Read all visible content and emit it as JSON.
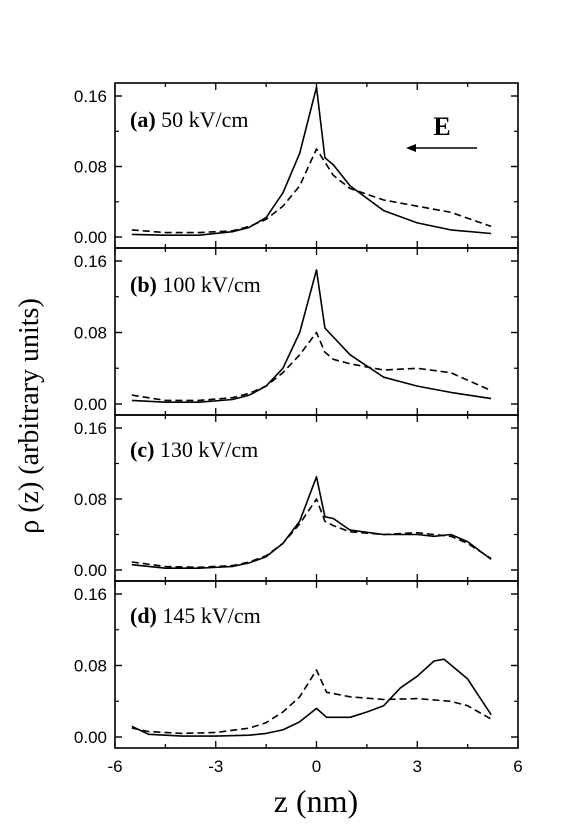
{
  "chart_data": [
    {
      "type": "line",
      "panel_label": "(a)",
      "field_label": "50 kV/cm",
      "annotation": "E",
      "ylim": [
        0.0,
        0.17
      ],
      "yticks": [
        "0.00",
        "0.08",
        "0.16"
      ],
      "series": [
        {
          "style": "solid",
          "x": [
            -5.5,
            -4.5,
            -3.5,
            -2.5,
            -2.0,
            -1.5,
            -1.0,
            -0.5,
            0.0,
            0.25,
            0.5,
            1.0,
            2.0,
            3.0,
            4.0,
            5.2
          ],
          "y": [
            0.003,
            0.002,
            0.002,
            0.006,
            0.011,
            0.022,
            0.05,
            0.095,
            0.17,
            0.09,
            0.082,
            0.058,
            0.03,
            0.016,
            0.008,
            0.004
          ]
        },
        {
          "style": "dashed",
          "x": [
            -5.5,
            -4.5,
            -3.5,
            -2.5,
            -2.0,
            -1.5,
            -1.0,
            -0.5,
            0.0,
            0.25,
            0.5,
            1.0,
            2.0,
            3.0,
            4.0,
            5.2
          ],
          "y": [
            0.008,
            0.005,
            0.005,
            0.007,
            0.012,
            0.02,
            0.035,
            0.058,
            0.1,
            0.085,
            0.07,
            0.055,
            0.042,
            0.035,
            0.028,
            0.012
          ]
        }
      ]
    },
    {
      "type": "line",
      "panel_label": "(b)",
      "field_label": "100 kV/cm",
      "ylim": [
        0.0,
        0.17
      ],
      "yticks": [
        "0.00",
        "0.08",
        "0.16"
      ],
      "series": [
        {
          "style": "solid",
          "x": [
            -5.5,
            -4.5,
            -3.5,
            -2.5,
            -2.0,
            -1.5,
            -1.0,
            -0.5,
            0.0,
            0.25,
            0.5,
            1.0,
            2.0,
            3.0,
            4.0,
            5.2
          ],
          "y": [
            0.004,
            0.002,
            0.002,
            0.005,
            0.01,
            0.02,
            0.04,
            0.08,
            0.15,
            0.085,
            0.075,
            0.055,
            0.03,
            0.02,
            0.013,
            0.006
          ]
        },
        {
          "style": "dashed",
          "x": [
            -5.5,
            -4.5,
            -3.5,
            -2.5,
            -2.0,
            -1.5,
            -1.0,
            -0.5,
            0.0,
            0.25,
            0.5,
            1.0,
            2.0,
            3.0,
            4.0,
            5.2
          ],
          "y": [
            0.01,
            0.004,
            0.004,
            0.007,
            0.012,
            0.02,
            0.035,
            0.055,
            0.08,
            0.058,
            0.05,
            0.045,
            0.038,
            0.04,
            0.035,
            0.015
          ]
        }
      ]
    },
    {
      "type": "line",
      "panel_label": "(c)",
      "field_label": "130 kV/cm",
      "ylim": [
        0.0,
        0.17
      ],
      "yticks": [
        "0.00",
        "0.08",
        "0.16"
      ],
      "series": [
        {
          "style": "solid",
          "x": [
            -5.5,
            -4.5,
            -3.5,
            -2.5,
            -2.0,
            -1.5,
            -1.0,
            -0.5,
            0.0,
            0.25,
            0.5,
            1.0,
            2.0,
            3.0,
            3.5,
            4.0,
            4.5,
            5.2
          ],
          "y": [
            0.006,
            0.002,
            0.002,
            0.004,
            0.008,
            0.015,
            0.03,
            0.055,
            0.105,
            0.06,
            0.058,
            0.045,
            0.04,
            0.04,
            0.038,
            0.04,
            0.032,
            0.012
          ]
        },
        {
          "style": "dashed",
          "x": [
            -5.5,
            -4.5,
            -3.5,
            -2.5,
            -2.0,
            -1.5,
            -1.0,
            -0.5,
            0.0,
            0.25,
            0.5,
            1.0,
            2.0,
            3.0,
            3.5,
            4.0,
            4.5,
            5.2
          ],
          "y": [
            0.009,
            0.004,
            0.003,
            0.005,
            0.009,
            0.016,
            0.03,
            0.052,
            0.08,
            0.055,
            0.05,
            0.043,
            0.04,
            0.042,
            0.04,
            0.038,
            0.03,
            0.013
          ]
        }
      ]
    },
    {
      "type": "line",
      "panel_label": "(d)",
      "field_label": "145 kV/cm",
      "xlabel": "z (nm)",
      "xlim": [
        -6,
        6
      ],
      "xticks": [
        "-6",
        "-3",
        "0",
        "3",
        "6"
      ],
      "ylim": [
        0.0,
        0.17
      ],
      "yticks": [
        "0.00",
        "0.08",
        "0.16"
      ],
      "series": [
        {
          "style": "solid",
          "x": [
            -5.5,
            -5.0,
            -4.0,
            -3.0,
            -2.0,
            -1.5,
            -1.0,
            -0.5,
            0.0,
            0.3,
            1.0,
            1.5,
            2.0,
            2.5,
            3.0,
            3.5,
            3.8,
            4.5,
            5.2
          ],
          "y": [
            0.012,
            0.003,
            0.001,
            0.001,
            0.002,
            0.004,
            0.008,
            0.017,
            0.032,
            0.022,
            0.022,
            0.028,
            0.035,
            0.055,
            0.068,
            0.085,
            0.087,
            0.065,
            0.025
          ]
        },
        {
          "style": "dashed",
          "x": [
            -5.5,
            -5.0,
            -4.0,
            -3.0,
            -2.0,
            -1.5,
            -1.0,
            -0.5,
            0.0,
            0.3,
            1.0,
            2.0,
            3.0,
            4.0,
            4.5,
            5.2
          ],
          "y": [
            0.01,
            0.006,
            0.004,
            0.005,
            0.01,
            0.016,
            0.028,
            0.045,
            0.075,
            0.05,
            0.045,
            0.042,
            0.043,
            0.04,
            0.035,
            0.02
          ]
        }
      ]
    }
  ],
  "ylabel": "ρ (z) (arbitrary units)"
}
